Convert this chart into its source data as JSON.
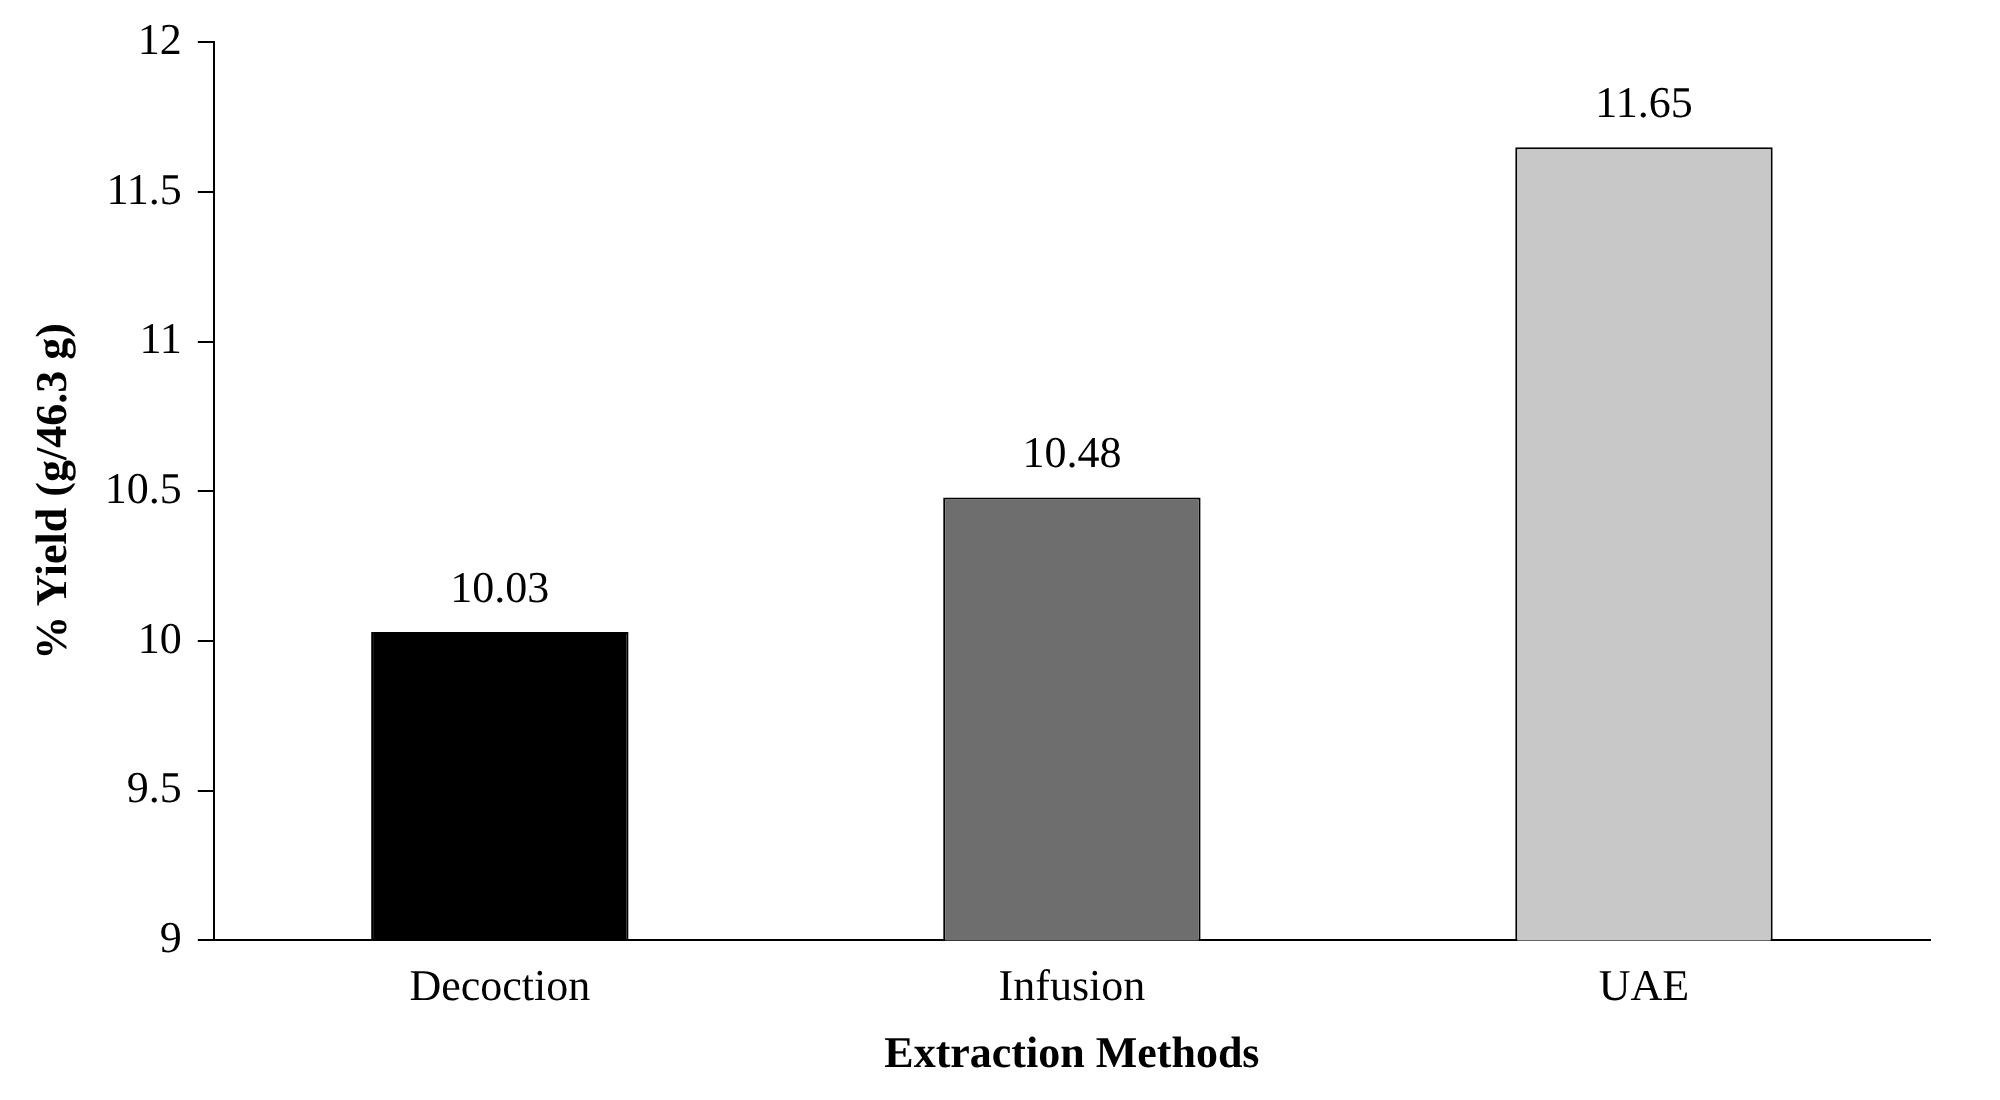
{
  "chart_data": {
    "type": "bar",
    "xlabel": "Extraction Methods",
    "ylabel": "% Yield (g/46.3 g)",
    "categories": [
      "Decoction",
      "Infusion",
      "UAE"
    ],
    "values": [
      10.03,
      10.48,
      11.65
    ],
    "colors": [
      "#000000",
      "#6e6e6e",
      "#c8c8c8"
    ],
    "ylim": [
      9,
      12
    ],
    "yticks": [
      9,
      9.5,
      10,
      10.5,
      11,
      11.5,
      12
    ],
    "grid": false,
    "legend": false,
    "data_labels": true
  }
}
